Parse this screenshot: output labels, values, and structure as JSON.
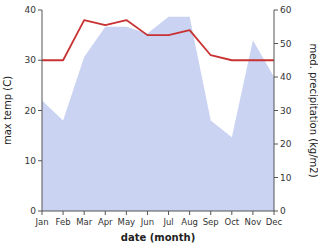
{
  "chart_data": {
    "type": "line",
    "categories": [
      "Jan",
      "Feb",
      "Mar",
      "Apr",
      "May",
      "Jun",
      "Jul",
      "Aug",
      "Sep",
      "Oct",
      "Nov",
      "Dec"
    ],
    "x_label": "date (month)",
    "y_label": "max temp (C)",
    "y2_label": "med. precipitation (kg/m2)",
    "series": [
      {
        "type": "area",
        "axis": "y2",
        "color": "#b8c4ee",
        "values": [
          33,
          27,
          46,
          55,
          55,
          53,
          58,
          58,
          27,
          22,
          51,
          40
        ]
      },
      {
        "type": "line",
        "color": "#c83232",
        "values": [
          30,
          30,
          38,
          37,
          38,
          35,
          35,
          36,
          31,
          30,
          30,
          30
        ]
      }
    ],
    "ylim": [
      0,
      40
    ],
    "yticks": [
      0,
      10,
      20,
      30,
      40
    ],
    "y2lim": [
      0,
      60
    ],
    "y2ticks": [
      0,
      10,
      20,
      30,
      40,
      50,
      60
    ]
  }
}
